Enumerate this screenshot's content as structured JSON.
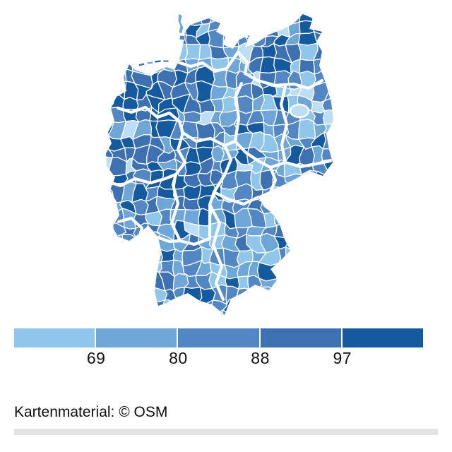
{
  "map_widget": {
    "type": "choropleth",
    "region": "germany-districts",
    "legend": {
      "breaks": [
        "69",
        "80",
        "88",
        "97"
      ],
      "colors": [
        "#8fc6ea",
        "#6ea6d7",
        "#5287c3",
        "#3e71b1",
        "#155a9e"
      ]
    },
    "pale_color": "#bcdef4",
    "boundary_color": "#ffffff",
    "attribution": "Kartenmaterial: © OSM"
  },
  "colors": {
    "background": "#ffffff",
    "text": "#111111",
    "divider_bar": "#e3e3e5"
  }
}
